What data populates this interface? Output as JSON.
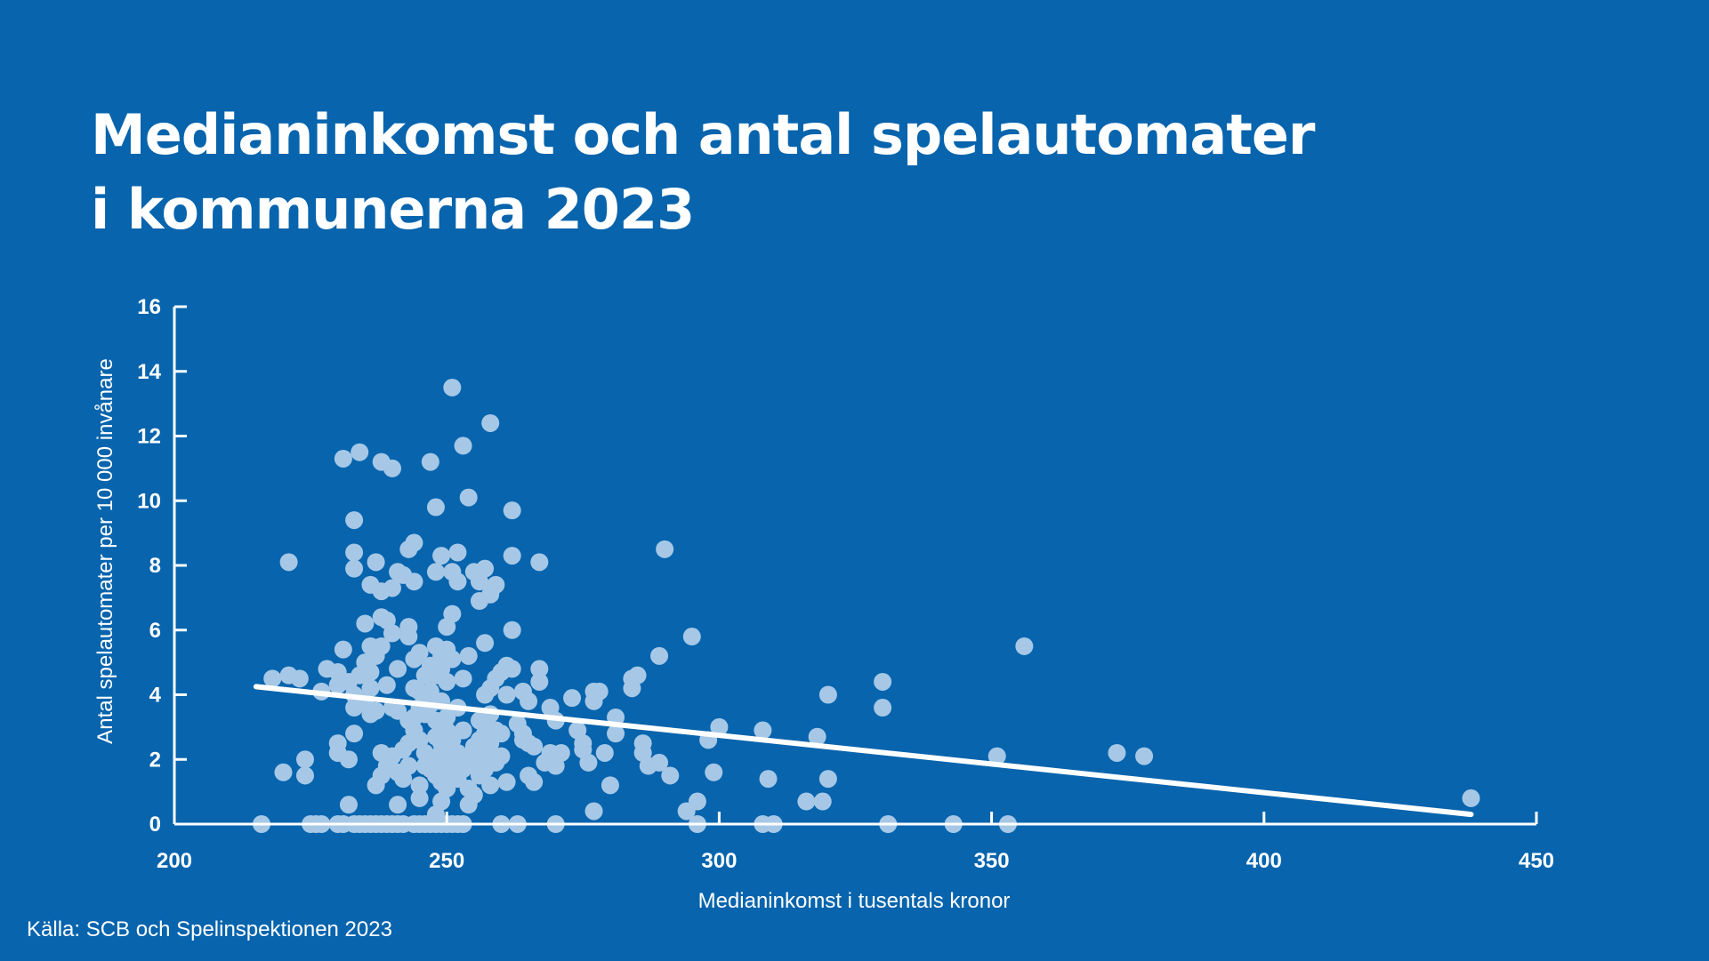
{
  "title_lines": [
    "Medianinkomst och antal spelautomater",
    "i kommunerna 2023"
  ],
  "source": "Källa: SCB och Spelinspektionen 2023",
  "colors": {
    "background": "#0764ad",
    "points": "#a6c8e6",
    "trend": "#ffffff",
    "text": "#ffffff"
  },
  "chart_data": {
    "type": "scatter",
    "title": "Medianinkomst och antal spelautomater i kommunerna 2023",
    "xlabel": "Medianinkomst i tusentals kronor",
    "ylabel": "Antal spelautomater per 10 000 invånare",
    "xlim": [
      200,
      450
    ],
    "ylim": [
      0,
      16
    ],
    "x_ticks": [
      200,
      250,
      300,
      350,
      400,
      450
    ],
    "y_ticks": [
      0,
      2,
      4,
      6,
      8,
      10,
      12,
      14,
      16
    ],
    "grid": false,
    "legend": "none",
    "trendline": {
      "x": [
        215,
        438
      ],
      "y": [
        4.25,
        0.3
      ]
    },
    "points": [
      [
        216,
        0
      ],
      [
        218,
        4.5
      ],
      [
        220,
        1.6
      ],
      [
        221,
        8.1
      ],
      [
        221,
        4.6
      ],
      [
        223,
        4.5
      ],
      [
        224,
        2
      ],
      [
        224,
        1.5
      ],
      [
        225,
        0
      ],
      [
        226,
        0
      ],
      [
        227,
        4.1
      ],
      [
        227,
        0
      ],
      [
        228,
        4.8
      ],
      [
        230,
        0
      ],
      [
        230,
        4.7
      ],
      [
        230,
        4.3
      ],
      [
        230,
        2.5
      ],
      [
        230,
        2.2
      ],
      [
        231,
        11.3
      ],
      [
        231,
        5.4
      ],
      [
        231,
        0
      ],
      [
        232,
        4.4
      ],
      [
        232,
        0.6
      ],
      [
        232,
        2
      ],
      [
        233,
        9.4
      ],
      [
        233,
        8.4
      ],
      [
        233,
        7.9
      ],
      [
        233,
        4
      ],
      [
        233,
        3.6
      ],
      [
        233,
        2.8
      ],
      [
        233,
        0
      ],
      [
        234,
        11.5
      ],
      [
        234,
        4.6
      ],
      [
        234,
        0
      ],
      [
        235,
        6.2
      ],
      [
        235,
        5
      ],
      [
        235,
        3.8
      ],
      [
        235,
        0
      ],
      [
        236,
        7.4
      ],
      [
        236,
        5.5
      ],
      [
        236,
        4.7
      ],
      [
        236,
        4.2
      ],
      [
        236,
        3.4
      ],
      [
        236,
        0
      ],
      [
        237,
        8.1
      ],
      [
        237,
        5.2
      ],
      [
        237,
        3.5
      ],
      [
        237,
        1.2
      ],
      [
        237,
        0
      ],
      [
        238,
        11.2
      ],
      [
        238,
        7.2
      ],
      [
        238,
        6.4
      ],
      [
        238,
        5.5
      ],
      [
        238,
        2.2
      ],
      [
        238,
        1.5
      ],
      [
        238,
        0
      ],
      [
        239,
        6.3
      ],
      [
        239,
        4.3
      ],
      [
        239,
        1.8
      ],
      [
        239,
        0
      ],
      [
        240,
        11
      ],
      [
        240,
        7.3
      ],
      [
        240,
        5.9
      ],
      [
        240,
        3.6
      ],
      [
        240,
        2.1
      ],
      [
        240,
        0
      ],
      [
        241,
        7.8
      ],
      [
        241,
        4.8
      ],
      [
        241,
        3.5
      ],
      [
        241,
        1.6
      ],
      [
        241,
        0.6
      ],
      [
        241,
        0
      ],
      [
        242,
        7.7
      ],
      [
        242,
        2.3
      ],
      [
        242,
        1.4
      ],
      [
        242,
        0
      ],
      [
        243,
        8.5
      ],
      [
        243,
        6.1
      ],
      [
        243,
        5.8
      ],
      [
        243,
        3.2
      ],
      [
        243,
        2.5
      ],
      [
        243,
        1.8
      ],
      [
        244,
        8.7
      ],
      [
        244,
        7.5
      ],
      [
        244,
        5.1
      ],
      [
        244,
        4.2
      ],
      [
        244,
        3.3
      ],
      [
        244,
        2.9
      ],
      [
        244,
        0
      ],
      [
        245,
        5.3
      ],
      [
        245,
        4.1
      ],
      [
        245,
        3.6
      ],
      [
        245,
        2.6
      ],
      [
        245,
        1.2
      ],
      [
        245,
        0.8
      ],
      [
        245,
        0
      ],
      [
        246,
        4.6
      ],
      [
        246,
        3.4
      ],
      [
        246,
        2.2
      ],
      [
        246,
        1.8
      ],
      [
        246,
        0
      ],
      [
        247,
        11.2
      ],
      [
        247,
        4.9
      ],
      [
        247,
        4.1
      ],
      [
        247,
        3.7
      ],
      [
        247,
        1.7
      ],
      [
        247,
        0
      ],
      [
        248,
        9.8
      ],
      [
        248,
        7.8
      ],
      [
        248,
        5.5
      ],
      [
        248,
        4.6
      ],
      [
        248,
        3.2
      ],
      [
        248,
        2.7
      ],
      [
        248,
        2
      ],
      [
        248,
        1.5
      ],
      [
        248,
        0.3
      ],
      [
        248,
        0
      ],
      [
        249,
        8.3
      ],
      [
        249,
        5.2
      ],
      [
        249,
        4.8
      ],
      [
        249,
        3.8
      ],
      [
        249,
        2.5
      ],
      [
        249,
        2.2
      ],
      [
        249,
        1.8
      ],
      [
        249,
        1.3
      ],
      [
        249,
        0.7
      ],
      [
        249,
        0
      ],
      [
        250,
        6.1
      ],
      [
        250,
        5.4
      ],
      [
        250,
        4.4
      ],
      [
        250,
        3.3
      ],
      [
        250,
        2.9
      ],
      [
        250,
        2.3
      ],
      [
        250,
        1.9
      ],
      [
        250,
        1.1
      ],
      [
        250,
        0
      ],
      [
        251,
        13.5
      ],
      [
        251,
        7.8
      ],
      [
        251,
        6.5
      ],
      [
        251,
        5.1
      ],
      [
        251,
        2.6
      ],
      [
        251,
        2
      ],
      [
        251,
        1.6
      ],
      [
        251,
        0
      ],
      [
        252,
        8.4
      ],
      [
        252,
        7.5
      ],
      [
        252,
        3.6
      ],
      [
        252,
        2.2
      ],
      [
        252,
        1.4
      ],
      [
        252,
        0
      ],
      [
        253,
        11.7
      ],
      [
        253,
        4.5
      ],
      [
        253,
        2.9
      ],
      [
        253,
        1.7
      ],
      [
        253,
        0
      ],
      [
        254,
        10.1
      ],
      [
        254,
        5.2
      ],
      [
        254,
        2.1
      ],
      [
        254,
        1.1
      ],
      [
        254,
        0.6
      ],
      [
        255,
        7.8
      ],
      [
        255,
        2.4
      ],
      [
        255,
        1.8
      ],
      [
        255,
        0.9
      ],
      [
        256,
        7.5
      ],
      [
        256,
        6.9
      ],
      [
        256,
        3.2
      ],
      [
        256,
        2.6
      ],
      [
        256,
        1.5
      ],
      [
        257,
        7.9
      ],
      [
        257,
        5.6
      ],
      [
        257,
        4
      ],
      [
        257,
        3.1
      ],
      [
        257,
        2.8
      ],
      [
        257,
        2.2
      ],
      [
        257,
        1.7
      ],
      [
        258,
        12.4
      ],
      [
        258,
        7.1
      ],
      [
        258,
        4.2
      ],
      [
        258,
        3.4
      ],
      [
        258,
        2.5
      ],
      [
        258,
        1.2
      ],
      [
        259,
        7.4
      ],
      [
        259,
        4.5
      ],
      [
        259,
        2.9
      ],
      [
        259,
        1.9
      ],
      [
        260,
        4.7
      ],
      [
        260,
        2.8
      ],
      [
        260,
        2.1
      ],
      [
        260,
        0
      ],
      [
        261,
        4.9
      ],
      [
        261,
        4
      ],
      [
        261,
        1.3
      ],
      [
        262,
        9.7
      ],
      [
        262,
        8.3
      ],
      [
        262,
        6
      ],
      [
        262,
        4.8
      ],
      [
        263,
        3.1
      ],
      [
        263,
        0
      ],
      [
        264,
        4.1
      ],
      [
        264,
        2.8
      ],
      [
        264,
        2.6
      ],
      [
        265,
        3.8
      ],
      [
        265,
        2.5
      ],
      [
        265,
        1.5
      ],
      [
        266,
        2.4
      ],
      [
        266,
        1.3
      ],
      [
        267,
        8.1
      ],
      [
        267,
        4.8
      ],
      [
        267,
        4.4
      ],
      [
        268,
        1.9
      ],
      [
        269,
        3.6
      ],
      [
        269,
        2.2
      ],
      [
        270,
        3.2
      ],
      [
        270,
        1.8
      ],
      [
        270,
        0
      ],
      [
        271,
        2.2
      ],
      [
        273,
        3.9
      ],
      [
        274,
        2.9
      ],
      [
        275,
        2.3
      ],
      [
        275,
        2.5
      ],
      [
        276,
        1.9
      ],
      [
        277,
        4.1
      ],
      [
        277,
        3.8
      ],
      [
        277,
        0.4
      ],
      [
        278,
        4.1
      ],
      [
        279,
        2.2
      ],
      [
        280,
        1.2
      ],
      [
        281,
        3.3
      ],
      [
        281,
        2.8
      ],
      [
        284,
        4.5
      ],
      [
        284,
        4.2
      ],
      [
        285,
        4.6
      ],
      [
        286,
        2.5
      ],
      [
        286,
        2.2
      ],
      [
        287,
        1.8
      ],
      [
        289,
        5.2
      ],
      [
        289,
        1.9
      ],
      [
        290,
        8.5
      ],
      [
        291,
        1.5
      ],
      [
        294,
        0.4
      ],
      [
        295,
        5.8
      ],
      [
        296,
        0.7
      ],
      [
        296,
        0
      ],
      [
        298,
        2.6
      ],
      [
        299,
        1.6
      ],
      [
        300,
        3
      ],
      [
        308,
        2.9
      ],
      [
        308,
        0
      ],
      [
        309,
        1.4
      ],
      [
        310,
        0
      ],
      [
        316,
        0.7
      ],
      [
        318,
        2.7
      ],
      [
        319,
        0.7
      ],
      [
        320,
        4
      ],
      [
        320,
        1.4
      ],
      [
        330,
        4.4
      ],
      [
        330,
        3.6
      ],
      [
        331,
        0
      ],
      [
        343,
        0
      ],
      [
        351,
        2.1
      ],
      [
        353,
        0
      ],
      [
        356,
        5.5
      ],
      [
        373,
        2.2
      ],
      [
        378,
        2.1
      ],
      [
        438,
        0.8
      ]
    ]
  }
}
